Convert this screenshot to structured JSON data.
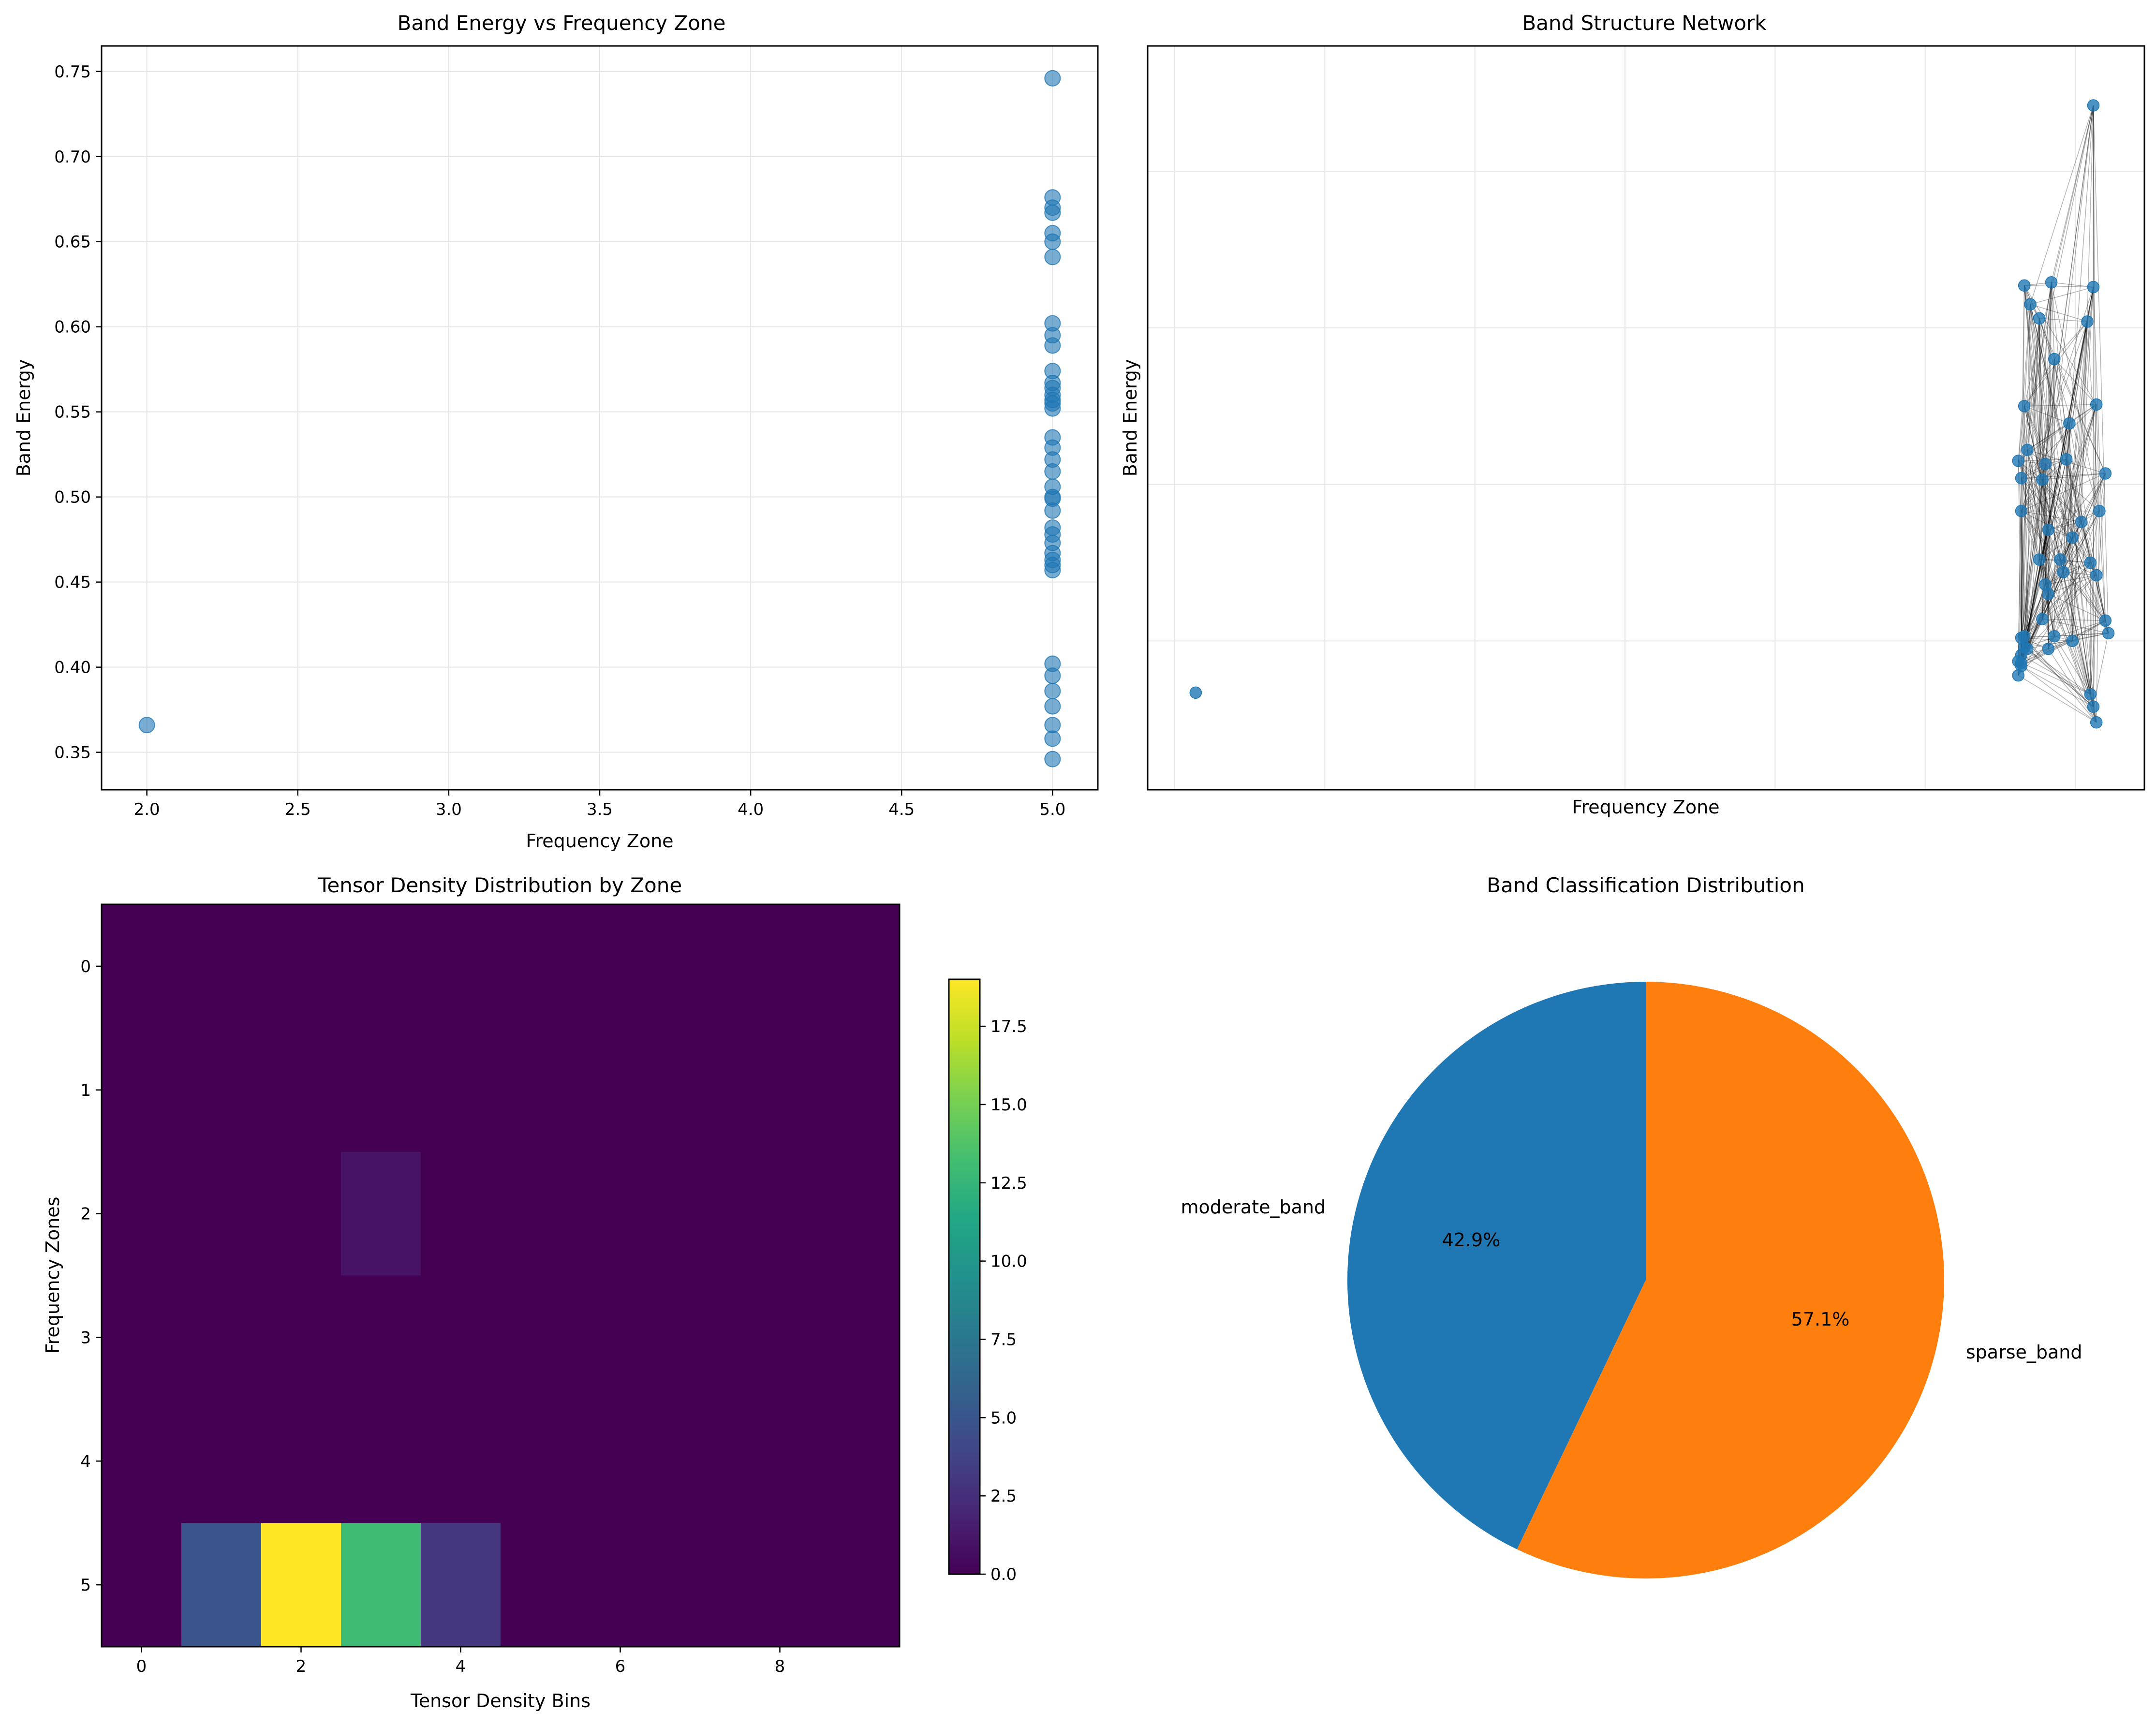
{
  "figure": {
    "background": "#ffffff"
  },
  "chart_data": [
    {
      "type": "scatter",
      "title": "Band Energy vs Frequency Zone",
      "xlabel": "Frequency Zone",
      "ylabel": "Band Energy",
      "xlim": [
        1.85,
        5.15
      ],
      "ylim": [
        0.328,
        0.765
      ],
      "xticks": [
        2.0,
        2.5,
        3.0,
        3.5,
        4.0,
        4.5,
        5.0
      ],
      "xtick_labels": [
        "2.0",
        "2.5",
        "3.0",
        "3.5",
        "4.0",
        "4.5",
        "5.0"
      ],
      "yticks": [
        0.35,
        0.4,
        0.45,
        0.5,
        0.55,
        0.6,
        0.65,
        0.7,
        0.75
      ],
      "ytick_labels": [
        "0.35",
        "0.40",
        "0.45",
        "0.50",
        "0.55",
        "0.60",
        "0.65",
        "0.70",
        "0.75"
      ],
      "grid": true,
      "color": "#1f77b4",
      "points": [
        {
          "x": 2,
          "y": 0.366
        },
        {
          "x": 5,
          "y": 0.746
        },
        {
          "x": 5,
          "y": 0.676
        },
        {
          "x": 5,
          "y": 0.67
        },
        {
          "x": 5,
          "y": 0.667
        },
        {
          "x": 5,
          "y": 0.655
        },
        {
          "x": 5,
          "y": 0.65
        },
        {
          "x": 5,
          "y": 0.641
        },
        {
          "x": 5,
          "y": 0.602
        },
        {
          "x": 5,
          "y": 0.595
        },
        {
          "x": 5,
          "y": 0.589
        },
        {
          "x": 5,
          "y": 0.574
        },
        {
          "x": 5,
          "y": 0.567
        },
        {
          "x": 5,
          "y": 0.564
        },
        {
          "x": 5,
          "y": 0.56
        },
        {
          "x": 5,
          "y": 0.557
        },
        {
          "x": 5,
          "y": 0.555
        },
        {
          "x": 5,
          "y": 0.552
        },
        {
          "x": 5,
          "y": 0.535
        },
        {
          "x": 5,
          "y": 0.529
        },
        {
          "x": 5,
          "y": 0.522
        },
        {
          "x": 5,
          "y": 0.515
        },
        {
          "x": 5,
          "y": 0.506
        },
        {
          "x": 5,
          "y": 0.5
        },
        {
          "x": 5,
          "y": 0.499
        },
        {
          "x": 5,
          "y": 0.492
        },
        {
          "x": 5,
          "y": 0.482
        },
        {
          "x": 5,
          "y": 0.478
        },
        {
          "x": 5,
          "y": 0.473
        },
        {
          "x": 5,
          "y": 0.467
        },
        {
          "x": 5,
          "y": 0.463
        },
        {
          "x": 5,
          "y": 0.46
        },
        {
          "x": 5,
          "y": 0.457
        },
        {
          "x": 5,
          "y": 0.402
        },
        {
          "x": 5,
          "y": 0.395
        },
        {
          "x": 5,
          "y": 0.386
        },
        {
          "x": 5,
          "y": 0.377
        },
        {
          "x": 5,
          "y": 0.366
        },
        {
          "x": 5,
          "y": 0.358
        },
        {
          "x": 5,
          "y": 0.346
        }
      ]
    },
    {
      "type": "network",
      "title": "Band Structure Network",
      "xlabel": "Frequency Zone",
      "ylabel": "Band Energy",
      "ticks_shown": false,
      "grid": true,
      "xlim": [
        -0.09,
        3.23
      ],
      "ylim": [
        -0.95,
        3.8
      ],
      "x_gridlines": [
        0,
        0.5,
        1.0,
        1.5,
        2.0,
        2.5,
        3.0
      ],
      "y_gridlines": [
        0,
        1,
        2,
        3
      ],
      "node_color": "#1f77b4",
      "edge_color": "#000000",
      "nodes": [
        {
          "x": 0.07,
          "y": -0.33
        },
        {
          "x": 3.06,
          "y": 3.42
        },
        {
          "x": 2.92,
          "y": 2.29
        },
        {
          "x": 3.06,
          "y": 2.26
        },
        {
          "x": 2.83,
          "y": 2.27
        },
        {
          "x": 2.85,
          "y": 2.15
        },
        {
          "x": 2.88,
          "y": 2.06
        },
        {
          "x": 3.04,
          "y": 2.04
        },
        {
          "x": 2.93,
          "y": 1.8
        },
        {
          "x": 2.83,
          "y": 1.5
        },
        {
          "x": 3.07,
          "y": 1.51
        },
        {
          "x": 2.98,
          "y": 1.39
        },
        {
          "x": 2.84,
          "y": 1.22
        },
        {
          "x": 2.81,
          "y": 1.15
        },
        {
          "x": 2.9,
          "y": 1.13
        },
        {
          "x": 2.97,
          "y": 1.16
        },
        {
          "x": 2.82,
          "y": 1.04
        },
        {
          "x": 2.89,
          "y": 1.03
        },
        {
          "x": 3.1,
          "y": 1.07
        },
        {
          "x": 2.82,
          "y": 0.83
        },
        {
          "x": 3.08,
          "y": 0.83
        },
        {
          "x": 3.02,
          "y": 0.76
        },
        {
          "x": 2.91,
          "y": 0.71
        },
        {
          "x": 2.99,
          "y": 0.66
        },
        {
          "x": 2.88,
          "y": 0.52
        },
        {
          "x": 2.95,
          "y": 0.52
        },
        {
          "x": 3.05,
          "y": 0.5
        },
        {
          "x": 2.96,
          "y": 0.44
        },
        {
          "x": 2.9,
          "y": 0.36
        },
        {
          "x": 3.07,
          "y": 0.42
        },
        {
          "x": 2.91,
          "y": 0.3
        },
        {
          "x": 3.1,
          "y": 0.13
        },
        {
          "x": 2.89,
          "y": 0.14
        },
        {
          "x": 3.11,
          "y": 0.05
        },
        {
          "x": 2.93,
          "y": 0.03
        },
        {
          "x": 2.99,
          "y": 0.0
        },
        {
          "x": 2.91,
          "y": -0.05
        },
        {
          "x": 2.82,
          "y": 0.02
        },
        {
          "x": 2.82,
          "y": -0.09
        },
        {
          "x": 2.82,
          "y": -0.14
        },
        {
          "x": 2.83,
          "y": 0.03
        },
        {
          "x": 2.84,
          "y": -0.05
        },
        {
          "x": 2.81,
          "y": -0.13
        },
        {
          "x": 2.83,
          "y": -0.04
        },
        {
          "x": 3.05,
          "y": -0.34
        },
        {
          "x": 3.06,
          "y": -0.42
        },
        {
          "x": 3.07,
          "y": -0.52
        },
        {
          "x": 2.82,
          "y": -0.16
        },
        {
          "x": 2.81,
          "y": -0.22
        }
      ]
    },
    {
      "type": "heatmap",
      "title": "Tensor Density Distribution by Zone",
      "xlabel": "Tensor Density Bins",
      "ylabel": "Frequency Zones",
      "colormap": "viridis",
      "xticks": [
        0,
        2,
        4,
        6,
        8
      ],
      "xtick_labels": [
        "0",
        "2",
        "4",
        "6",
        "8"
      ],
      "yticks": [
        0,
        1,
        2,
        3,
        4,
        5
      ],
      "ytick_labels": [
        "0",
        "1",
        "2",
        "3",
        "4",
        "5"
      ],
      "vmin": 0,
      "vmax": 19,
      "colorbar_ticks": [
        0.0,
        2.5,
        5.0,
        7.5,
        10.0,
        12.5,
        15.0,
        17.5
      ],
      "colorbar_tick_labels": [
        "0.0",
        "2.5",
        "5.0",
        "7.5",
        "10.0",
        "12.5",
        "15.0",
        "17.5"
      ],
      "matrix": [
        [
          0,
          0,
          0,
          0,
          0,
          0,
          0,
          0,
          0,
          0
        ],
        [
          0,
          0,
          0,
          0,
          0,
          0,
          0,
          0,
          0,
          0
        ],
        [
          0,
          0,
          0,
          1,
          0,
          0,
          0,
          0,
          0,
          0
        ],
        [
          0,
          0,
          0,
          0,
          0,
          0,
          0,
          0,
          0,
          0
        ],
        [
          0,
          0,
          0,
          0,
          0,
          0,
          0,
          0,
          0,
          0
        ],
        [
          0,
          5,
          19,
          13,
          3,
          0,
          0,
          0,
          0,
          0
        ]
      ]
    },
    {
      "type": "pie",
      "title": "Band Classification Distribution",
      "labels": [
        "moderate_band",
        "sparse_band"
      ],
      "values": [
        42.9,
        57.1
      ],
      "pct_labels": [
        "42.9%",
        "57.1%"
      ],
      "colors": [
        "#1f77b4",
        "#ff7f0e"
      ],
      "start_angle": 90
    }
  ]
}
